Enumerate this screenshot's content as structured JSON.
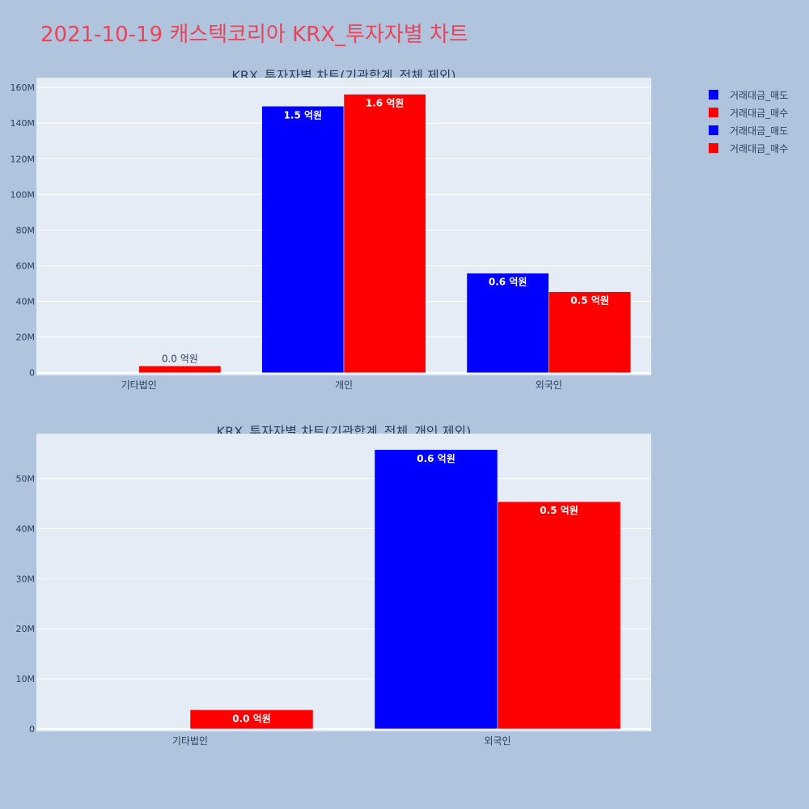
{
  "title": "2021-10-19 캐스텍코리아 KRX_투자자별 차트",
  "legend": [
    {
      "label": "거래대금_매도",
      "color": "#0000ff"
    },
    {
      "label": "거래대금_매수",
      "color": "#ff0000"
    },
    {
      "label": "거래대금_매도",
      "color": "#0000ff"
    },
    {
      "label": "거래대금_매수",
      "color": "#ff0000"
    }
  ],
  "chart_data": [
    {
      "type": "bar",
      "title": "KRX_투자자별 차트(기관합계_전체 제외)",
      "categories": [
        "기타법인",
        "개인",
        "외국인"
      ],
      "series": [
        {
          "name": "거래대금_매도",
          "color": "#0000ff",
          "values": [
            0,
            149500000,
            55800000
          ],
          "labels": [
            "",
            "1.5 억원",
            "0.6 억원"
          ]
        },
        {
          "name": "거래대금_매수",
          "color": "#ff0000",
          "values": [
            3800000,
            156200000,
            45400000
          ],
          "labels": [
            "0.0 억원",
            "1.6 억원",
            "0.5 억원"
          ]
        }
      ],
      "yticks": [
        0,
        20000000,
        40000000,
        60000000,
        80000000,
        100000000,
        120000000,
        140000000,
        160000000
      ],
      "ytick_labels": [
        "0",
        "20M",
        "40M",
        "60M",
        "80M",
        "100M",
        "120M",
        "140M",
        "160M"
      ],
      "ylim": [
        -1500000,
        165500000
      ],
      "grid": true
    },
    {
      "type": "bar",
      "title": "KRX_투자자별 차트(기관합계_전체_개인 제외)",
      "categories": [
        "기타법인",
        "외국인"
      ],
      "series": [
        {
          "name": "거래대금_매도",
          "color": "#0000ff",
          "values": [
            0,
            55800000
          ],
          "labels": [
            "",
            "0.6 억원"
          ]
        },
        {
          "name": "거래대금_매수",
          "color": "#ff0000",
          "values": [
            3800000,
            45400000
          ],
          "labels": [
            "0.0 억원",
            "0.5 억원"
          ]
        }
      ],
      "yticks": [
        0,
        10000000,
        20000000,
        30000000,
        40000000,
        50000000
      ],
      "ytick_labels": [
        "0",
        "10M",
        "20M",
        "30M",
        "40M",
        "50M"
      ],
      "ylim": [
        -500000,
        59000000
      ],
      "grid": true
    }
  ]
}
